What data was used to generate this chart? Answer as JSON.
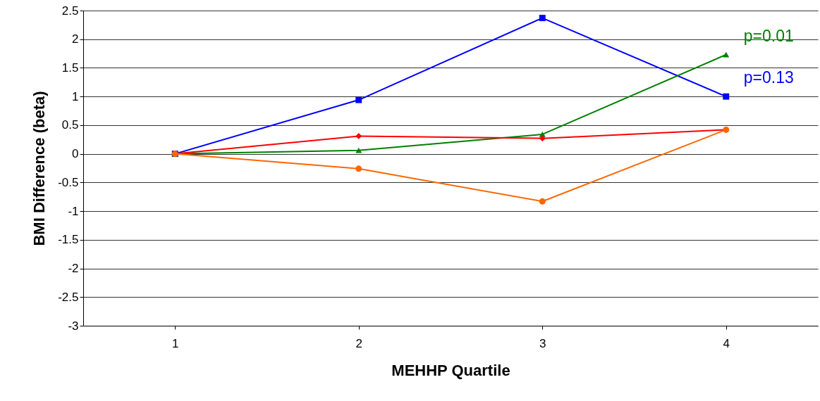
{
  "chart_data": {
    "type": "line",
    "xlabel": "MEHHP Quartile",
    "ylabel": "BMI Difference (beta)",
    "categories": [
      "1",
      "2",
      "3",
      "4"
    ],
    "series": [
      {
        "name": "p=0.13",
        "color": "#0000ff",
        "marker": "square",
        "values": [
          0,
          0.94,
          2.37,
          1.0
        ]
      },
      {
        "name": "p=0.01",
        "color": "#008000",
        "marker": "triangle",
        "values": [
          0,
          0.06,
          0.34,
          1.73
        ]
      },
      {
        "color": "#ff0000",
        "marker": "diamond",
        "values": [
          0,
          0.31,
          0.27,
          0.42
        ]
      },
      {
        "color": "#ff6600",
        "marker": "circle",
        "values": [
          0,
          -0.26,
          -0.83,
          0.42
        ]
      }
    ],
    "ylim": [
      -3,
      2.5
    ],
    "yticks": [
      -3,
      -2.5,
      -2,
      -1.5,
      -1,
      -0.5,
      0,
      0.5,
      1,
      1.5,
      2,
      2.5
    ],
    "grid": "y",
    "line_style": "solid"
  }
}
